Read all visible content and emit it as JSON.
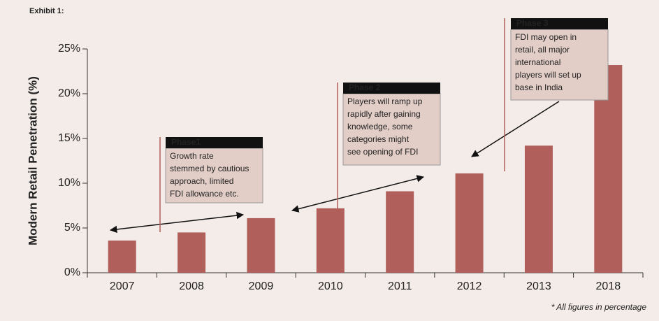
{
  "chart_data": {
    "type": "bar",
    "exhibit": "Exhibit 1:",
    "ylabel": "Modern Retail Penetration (%)",
    "categories": [
      "2007",
      "2008",
      "2009",
      "2010",
      "2011",
      "2012",
      "2013",
      "2018"
    ],
    "values": [
      3.6,
      4.5,
      6.1,
      7.2,
      9.1,
      11.1,
      14.2,
      23.2
    ],
    "color": "#b05f5a",
    "ylim": [
      0,
      25
    ],
    "yticks": [
      {
        "value": 0,
        "label": "0%"
      },
      {
        "value": 5,
        "label": "5%"
      },
      {
        "value": 10,
        "label": "10%"
      },
      {
        "value": 15,
        "label": "15%"
      },
      {
        "value": 20,
        "label": "20%"
      },
      {
        "value": 25,
        "label": "25%"
      }
    ],
    "annotations": [
      {
        "label": "Phase1",
        "lines": [
          "Growth rate",
          "stemmed by cautious",
          "approach, limited",
          "FDI allowance etc."
        ]
      },
      {
        "label": "Phase 2",
        "lines": [
          "Players will ramp up",
          "rapidly after gaining",
          "knowledge, some",
          "categories might",
          "see opening of FDI"
        ]
      },
      {
        "label": "Phase 3",
        "lines": [
          "FDI may open in",
          "retail, all major",
          "international",
          "players will set up",
          "base in India"
        ]
      }
    ],
    "footnote": "* All figures in percentage"
  }
}
